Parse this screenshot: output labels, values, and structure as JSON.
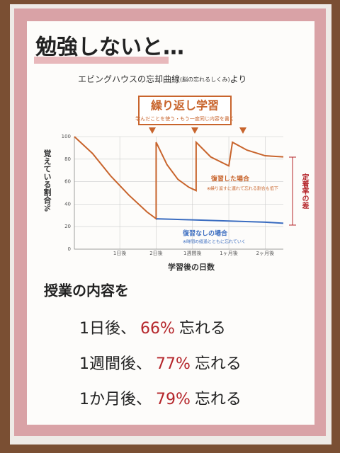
{
  "header": {
    "title": "勉強しないと…",
    "subtitle": "エビングハウスの忘却曲線",
    "subtitle_note": "(脳の忘れるしくみ)",
    "subtitle_tail": "より"
  },
  "callout": {
    "title": "繰り返し学習",
    "note": "学んだことを使う・もう一度同じ内容を書く"
  },
  "chart_data": {
    "type": "line",
    "y_label": "覚えている割合%",
    "x_label": "学習後の日数",
    "xlim": [
      -0.25,
      5.5
    ],
    "xticks": [
      {
        "value": 1,
        "label": "1日後"
      },
      {
        "value": 2,
        "label": "2日後"
      },
      {
        "value": 3,
        "label": "1週間後"
      },
      {
        "value": 4,
        "label": "1ヶ月後"
      },
      {
        "value": 5,
        "label": "2ヶ月後"
      }
    ],
    "ylim": [
      0,
      100
    ],
    "yticks": [
      0,
      20,
      40,
      60,
      80,
      100
    ],
    "grid": true,
    "series": [
      {
        "name": "復習した場合",
        "color": "#c8642c",
        "x": [
          -0.25,
          0.25,
          0.75,
          1.25,
          1.75,
          2.0,
          2.0,
          2.3,
          2.6,
          2.9,
          3.1,
          3.1,
          3.5,
          4.0,
          4.1,
          4.5,
          5.0,
          5.5
        ],
        "values": [
          100,
          85,
          65,
          48,
          33,
          27,
          95,
          75,
          62,
          55,
          52,
          95,
          82,
          74,
          95,
          88,
          83,
          82
        ]
      },
      {
        "name": "復習なしの場合",
        "color": "#3a6cc0",
        "x": [
          2.0,
          3.0,
          4.0,
          5.0,
          5.5
        ],
        "values": [
          27,
          26,
          25,
          24,
          23
        ]
      }
    ],
    "annotations": {
      "reviewed_note": "※繰り返すに連れて忘れる割合も低下",
      "unreviewed_note": "※時間の経過とともに忘れていく",
      "gap": "定着率の差"
    }
  },
  "summary": {
    "heading": "授業の内容を",
    "items": [
      {
        "when": "1日後、",
        "percent": "66%",
        "verb": "忘れる"
      },
      {
        "when": "1週間後、",
        "percent": "77%",
        "verb": "忘れる"
      },
      {
        "when": "1か月後、",
        "percent": "79%",
        "verb": "忘れる"
      }
    ]
  }
}
